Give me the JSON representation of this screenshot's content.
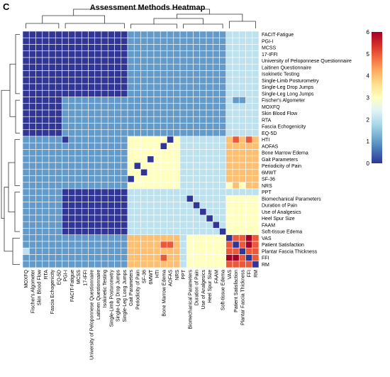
{
  "chart_data": {
    "type": "heatmap",
    "panel_label": "C",
    "title": "Assessment Methods Heatmap",
    "rows": [
      "FACIT-Fatigue",
      "PGI-I",
      "MCSS",
      "17-IFFI",
      "University of Peloponnese Questionnaire",
      "Laitinen Questionnaire",
      "Isokinetic Testing",
      "Single-Limb Posturometry",
      "Single-Leg Drop Jumps",
      "Single-Leg Long Jumps",
      "Fischer's Algometer",
      "MOXFQ",
      "Skin Blood Flow",
      "RTA",
      "Fascia Echogenicity",
      "EQ-5D",
      "HTI",
      "AOFAS",
      "Bone Marrow Edema",
      "Gait Parameters",
      "Periodicity of Pain",
      "6MWT",
      "SF-36",
      "NRS",
      "PPT",
      "Biomechanical Parameters",
      "Duration of Pain",
      "Use of Analgesics",
      "Heel Spur Size",
      "FAAM",
      "Soft-tissue Edema",
      "VAS",
      "Patient Satisfaction",
      "Plantar Fascia Thickness",
      "FFI",
      "RM"
    ],
    "columns": [
      "MOXFQ",
      "Fischer's Algometer",
      "Skin Blood Flow",
      "RTA",
      "Fascia Echogenicity",
      "EQ-5D",
      "PGI-I",
      "FACIT-Fatigue",
      "MCSS",
      "17-IFFI",
      "University of Peloponnese Questionnaire",
      "Laitinen Questionnaire",
      "Isokinetic Testing",
      "Single-Limb Posturometry",
      "Single-Leg Drop Jumps",
      "Single-Leg Long Jumps",
      "Gait Parameters",
      "Periodicity of Pain",
      "SF-36",
      "6MWT",
      "HTI",
      "Bone Marrow Edema",
      "AOFAS",
      "NRS",
      "PPT",
      "Biomechanical Parameters",
      "Duration of Pain",
      "Use of Analgesics",
      "Heel Spur Size",
      "FAAM",
      "Soft-tissue Edema",
      "VAS",
      "Patient Satisfaction",
      "Plantar Fascia Thickness",
      "FFI",
      "RM"
    ],
    "values": [
      [
        0,
        0,
        0,
        0,
        0,
        0,
        0,
        0,
        0,
        0,
        0,
        0,
        0,
        0,
        0,
        0,
        1,
        1,
        1,
        1,
        1,
        1,
        1,
        1,
        1,
        1,
        1,
        1,
        1,
        1,
        1,
        2,
        2,
        2,
        2,
        2
      ],
      [
        0,
        0,
        0,
        0,
        0,
        0,
        0,
        0,
        0,
        0,
        0,
        0,
        0,
        0,
        0,
        0,
        1,
        1,
        1,
        1,
        1,
        1,
        1,
        1,
        1,
        1,
        1,
        1,
        1,
        1,
        1,
        2,
        2,
        2,
        2,
        2
      ],
      [
        0,
        0,
        0,
        0,
        0,
        0,
        0,
        0,
        0,
        0,
        0,
        0,
        0,
        0,
        0,
        0,
        1,
        1,
        1,
        1,
        1,
        1,
        1,
        1,
        1,
        1,
        1,
        1,
        1,
        1,
        1,
        2,
        2,
        2,
        2,
        2
      ],
      [
        0,
        0,
        0,
        0,
        0,
        0,
        0,
        0,
        0,
        0,
        0,
        0,
        0,
        0,
        0,
        0,
        1,
        1,
        1,
        1,
        1,
        1,
        1,
        1,
        1,
        1,
        1,
        1,
        1,
        1,
        1,
        2,
        2,
        2,
        2,
        2
      ],
      [
        0,
        0,
        0,
        0,
        0,
        0,
        0,
        0,
        0,
        0,
        0,
        0,
        0,
        0,
        0,
        0,
        1,
        1,
        1,
        1,
        1,
        1,
        1,
        1,
        1,
        1,
        1,
        1,
        1,
        1,
        1,
        2,
        2,
        2,
        2,
        2
      ],
      [
        0,
        0,
        0,
        0,
        0,
        0,
        0,
        0,
        0,
        0,
        0,
        0,
        0,
        0,
        0,
        0,
        1,
        1,
        1,
        1,
        1,
        1,
        1,
        1,
        1,
        1,
        1,
        1,
        1,
        1,
        1,
        2,
        2,
        2,
        2,
        2
      ],
      [
        0,
        0,
        0,
        0,
        0,
        0,
        0,
        0,
        0,
        0,
        0,
        0,
        0,
        0,
        0,
        0,
        1,
        1,
        1,
        1,
        1,
        1,
        1,
        1,
        1,
        1,
        1,
        1,
        1,
        1,
        1,
        2,
        2,
        2,
        2,
        2
      ],
      [
        0,
        0,
        0,
        0,
        0,
        0,
        0,
        0,
        0,
        0,
        0,
        0,
        0,
        0,
        0,
        0,
        1,
        1,
        1,
        1,
        1,
        1,
        1,
        1,
        1,
        1,
        1,
        1,
        1,
        1,
        1,
        2,
        2,
        2,
        2,
        2
      ],
      [
        0,
        0,
        0,
        0,
        0,
        0,
        0,
        0,
        0,
        0,
        0,
        0,
        0,
        0,
        0,
        0,
        1,
        1,
        1,
        1,
        1,
        1,
        1,
        1,
        1,
        1,
        1,
        1,
        1,
        1,
        1,
        2,
        2,
        2,
        2,
        2
      ],
      [
        0,
        0,
        0,
        0,
        0,
        0,
        0,
        0,
        0,
        0,
        0,
        0,
        0,
        0,
        0,
        0,
        1,
        1,
        1,
        1,
        1,
        1,
        1,
        1,
        1,
        1,
        1,
        1,
        1,
        1,
        1,
        2,
        2,
        2,
        2,
        2
      ],
      [
        0,
        0,
        0,
        0,
        0,
        0,
        1,
        1,
        1,
        1,
        1,
        1,
        1,
        1,
        1,
        1,
        1,
        1,
        1,
        1,
        1,
        1,
        1,
        1,
        1,
        1,
        1,
        1,
        1,
        1,
        1,
        2,
        1,
        1,
        2,
        2
      ],
      [
        0,
        0,
        0,
        0,
        0,
        0,
        1,
        1,
        1,
        1,
        1,
        1,
        1,
        1,
        1,
        1,
        1,
        1,
        1,
        1,
        1,
        1,
        1,
        1,
        1,
        1,
        1,
        1,
        1,
        1,
        1,
        2,
        2,
        2,
        2,
        2
      ],
      [
        0,
        0,
        0,
        0,
        0,
        0,
        1,
        1,
        1,
        1,
        1,
        1,
        1,
        1,
        1,
        1,
        1,
        1,
        1,
        1,
        1,
        1,
        1,
        1,
        1,
        1,
        1,
        1,
        1,
        1,
        1,
        2,
        2,
        2,
        2,
        2
      ],
      [
        0,
        0,
        0,
        0,
        0,
        0,
        1,
        1,
        1,
        1,
        1,
        1,
        1,
        1,
        1,
        1,
        1,
        1,
        1,
        1,
        1,
        1,
        1,
        1,
        1,
        1,
        1,
        1,
        1,
        1,
        1,
        2,
        2,
        2,
        2,
        2
      ],
      [
        0,
        0,
        0,
        0,
        0,
        0,
        1,
        1,
        1,
        1,
        1,
        1,
        1,
        1,
        1,
        1,
        1,
        1,
        1,
        1,
        1,
        1,
        1,
        1,
        1,
        1,
        1,
        1,
        1,
        1,
        1,
        2,
        2,
        2,
        2,
        2
      ],
      [
        0,
        0,
        0,
        0,
        0,
        0,
        1,
        1,
        1,
        1,
        1,
        1,
        1,
        1,
        1,
        1,
        1,
        1,
        1,
        1,
        1,
        1,
        1,
        1,
        1,
        1,
        1,
        1,
        1,
        1,
        1,
        2,
        2,
        2,
        2,
        2
      ],
      [
        1,
        1,
        1,
        1,
        1,
        1,
        0,
        1,
        1,
        1,
        1,
        1,
        1,
        1,
        1,
        1,
        3,
        3,
        3,
        3,
        3,
        3,
        0,
        3,
        2,
        2,
        2,
        2,
        2,
        2,
        2,
        4,
        5,
        4,
        5,
        4
      ],
      [
        1,
        1,
        1,
        1,
        1,
        1,
        1,
        1,
        1,
        1,
        1,
        1,
        1,
        1,
        1,
        1,
        3,
        3,
        3,
        3,
        3,
        0,
        3,
        3,
        2,
        2,
        2,
        2,
        2,
        2,
        2,
        4,
        4,
        4,
        4,
        4
      ],
      [
        1,
        1,
        1,
        1,
        1,
        1,
        1,
        1,
        1,
        1,
        1,
        1,
        1,
        1,
        1,
        1,
        3,
        3,
        3,
        3,
        3,
        3,
        3,
        3,
        2,
        2,
        2,
        2,
        2,
        2,
        2,
        4,
        4,
        4,
        4,
        4
      ],
      [
        1,
        1,
        1,
        1,
        1,
        1,
        1,
        1,
        1,
        1,
        1,
        1,
        1,
        1,
        1,
        1,
        3,
        3,
        3,
        0,
        3,
        3,
        3,
        3,
        2,
        2,
        2,
        2,
        2,
        2,
        2,
        4,
        4,
        4,
        4,
        4
      ],
      [
        1,
        1,
        1,
        1,
        1,
        1,
        1,
        1,
        1,
        1,
        1,
        1,
        1,
        1,
        1,
        1,
        3,
        0,
        3,
        3,
        3,
        3,
        3,
        3,
        2,
        2,
        2,
        2,
        2,
        2,
        2,
        4,
        4,
        4,
        4,
        4
      ],
      [
        1,
        1,
        1,
        1,
        1,
        1,
        1,
        1,
        1,
        1,
        1,
        1,
        1,
        1,
        1,
        1,
        3,
        3,
        0,
        3,
        3,
        3,
        3,
        3,
        2,
        2,
        2,
        2,
        2,
        2,
        2,
        4,
        4,
        4,
        4,
        4
      ],
      [
        1,
        1,
        1,
        1,
        1,
        1,
        1,
        1,
        1,
        1,
        1,
        1,
        1,
        1,
        1,
        1,
        0,
        3,
        3,
        3,
        3,
        3,
        3,
        3,
        2,
        2,
        2,
        2,
        2,
        2,
        2,
        4,
        4,
        4,
        4,
        4
      ],
      [
        1,
        1,
        1,
        1,
        1,
        1,
        1,
        1,
        1,
        1,
        1,
        1,
        1,
        1,
        1,
        1,
        3,
        3,
        3,
        3,
        3,
        3,
        3,
        3,
        2,
        2,
        2,
        2,
        2,
        2,
        2,
        3,
        4,
        3,
        4,
        4
      ],
      [
        1,
        1,
        1,
        1,
        1,
        1,
        0,
        0,
        0,
        0,
        0,
        0,
        0,
        0,
        0,
        0,
        2,
        2,
        2,
        2,
        2,
        2,
        2,
        2,
        2,
        2,
        2,
        2,
        2,
        2,
        2,
        2,
        2,
        2,
        2,
        2
      ],
      [
        1,
        1,
        1,
        1,
        1,
        1,
        0,
        0,
        0,
        0,
        0,
        0,
        0,
        0,
        0,
        0,
        2,
        2,
        2,
        2,
        2,
        2,
        2,
        2,
        2,
        0,
        2,
        2,
        2,
        2,
        2,
        3,
        3,
        3,
        3,
        3
      ],
      [
        1,
        1,
        1,
        1,
        1,
        1,
        0,
        0,
        0,
        0,
        0,
        0,
        0,
        0,
        0,
        0,
        2,
        2,
        2,
        2,
        2,
        2,
        2,
        2,
        2,
        2,
        0,
        2,
        2,
        2,
        2,
        3,
        3,
        3,
        3,
        3
      ],
      [
        1,
        1,
        1,
        1,
        1,
        1,
        0,
        0,
        0,
        0,
        0,
        0,
        0,
        0,
        0,
        0,
        2,
        2,
        2,
        2,
        2,
        2,
        2,
        2,
        2,
        2,
        2,
        0,
        2,
        2,
        2,
        3,
        3,
        3,
        3,
        3
      ],
      [
        1,
        1,
        1,
        1,
        1,
        1,
        0,
        0,
        0,
        0,
        0,
        0,
        0,
        0,
        0,
        0,
        2,
        2,
        2,
        2,
        2,
        2,
        2,
        2,
        2,
        2,
        2,
        2,
        0,
        2,
        2,
        3,
        3,
        3,
        3,
        3
      ],
      [
        1,
        1,
        1,
        1,
        1,
        1,
        0,
        0,
        0,
        0,
        0,
        0,
        0,
        0,
        0,
        0,
        2,
        2,
        2,
        2,
        2,
        2,
        2,
        2,
        2,
        2,
        2,
        2,
        2,
        0,
        2,
        3,
        3,
        3,
        3,
        3
      ],
      [
        1,
        1,
        1,
        1,
        1,
        1,
        0,
        0,
        0,
        0,
        0,
        0,
        0,
        0,
        0,
        0,
        2,
        2,
        2,
        2,
        2,
        2,
        2,
        2,
        2,
        2,
        2,
        2,
        2,
        2,
        0,
        3,
        3,
        3,
        3,
        3
      ],
      [
        1,
        1,
        1,
        1,
        1,
        1,
        1,
        1,
        1,
        1,
        1,
        1,
        1,
        1,
        1,
        1,
        4,
        4,
        4,
        4,
        4,
        4,
        4,
        4,
        2,
        3,
        3,
        3,
        3,
        3,
        3,
        0,
        5,
        5,
        6,
        5
      ],
      [
        1,
        1,
        1,
        1,
        1,
        1,
        1,
        1,
        1,
        1,
        1,
        1,
        1,
        1,
        1,
        1,
        4,
        4,
        4,
        4,
        4,
        5,
        5,
        4,
        2,
        3,
        3,
        3,
        3,
        3,
        3,
        5,
        0,
        5,
        6,
        5
      ],
      [
        2,
        1,
        1,
        1,
        1,
        1,
        1,
        1,
        1,
        1,
        1,
        1,
        1,
        1,
        1,
        1,
        4,
        4,
        4,
        4,
        4,
        4,
        4,
        4,
        2,
        3,
        3,
        3,
        3,
        3,
        3,
        5,
        5,
        0,
        5,
        5
      ],
      [
        1,
        1,
        1,
        1,
        1,
        1,
        1,
        1,
        1,
        1,
        1,
        1,
        1,
        1,
        1,
        1,
        4,
        4,
        4,
        4,
        4,
        5,
        4,
        4,
        2,
        3,
        3,
        3,
        3,
        3,
        3,
        6,
        6,
        5,
        0,
        5
      ],
      [
        1,
        1,
        1,
        1,
        1,
        1,
        1,
        1,
        1,
        1,
        1,
        1,
        1,
        1,
        1,
        1,
        4,
        4,
        4,
        4,
        4,
        4,
        4,
        4,
        2,
        3,
        3,
        3,
        3,
        3,
        3,
        5,
        5,
        5,
        5,
        0
      ]
    ],
    "scale": {
      "min": 0,
      "max": 6,
      "ticks": [
        0,
        1,
        2,
        3,
        4,
        5,
        6
      ]
    },
    "colormap": [
      "#313695",
      "#4575b4",
      "#74add1",
      "#abd9e9",
      "#e0f3f8",
      "#ffffbf",
      "#fee090",
      "#fdae61",
      "#f46d43",
      "#d73027",
      "#a50026"
    ],
    "grid": true,
    "legend_position": "top-right",
    "dendrograms": [
      "top",
      "left"
    ]
  }
}
